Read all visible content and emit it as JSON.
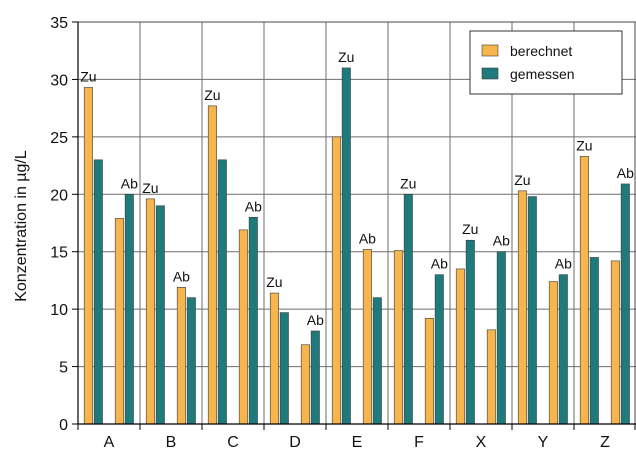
{
  "chart_data": {
    "type": "bar",
    "xlabel": "",
    "ylabel": "Konzentration in µg/L",
    "ylim": [
      0,
      35
    ],
    "yticks": [
      0,
      5,
      10,
      15,
      20,
      25,
      30,
      35
    ],
    "grid": {
      "horizontal": true,
      "vertical": true
    },
    "legend_position": "top-right",
    "categories": [
      "A",
      "B",
      "C",
      "D",
      "E",
      "F",
      "X",
      "Y",
      "Z"
    ],
    "groups": [
      {
        "category": "A",
        "bars": [
          {
            "series": "berechnet",
            "value": 29.3,
            "label": "Zu"
          },
          {
            "series": "gemessen",
            "value": 23.0,
            "label": ""
          },
          {
            "series": "berechnet",
            "value": 17.9,
            "label": ""
          },
          {
            "series": "gemessen",
            "value": 20.0,
            "label": "Ab"
          }
        ]
      },
      {
        "category": "B",
        "bars": [
          {
            "series": "berechnet",
            "value": 19.6,
            "label": "Zu"
          },
          {
            "series": "gemessen",
            "value": 19.0,
            "label": ""
          },
          {
            "series": "berechnet",
            "value": 11.9,
            "label": "Ab"
          },
          {
            "series": "gemessen",
            "value": 11.0,
            "label": ""
          }
        ]
      },
      {
        "category": "C",
        "bars": [
          {
            "series": "berechnet",
            "value": 27.7,
            "label": "Zu"
          },
          {
            "series": "gemessen",
            "value": 23.0,
            "label": ""
          },
          {
            "series": "berechnet",
            "value": 16.9,
            "label": ""
          },
          {
            "series": "gemessen",
            "value": 18.0,
            "label": "Ab"
          }
        ]
      },
      {
        "category": "D",
        "bars": [
          {
            "series": "berechnet",
            "value": 11.4,
            "label": "Zu"
          },
          {
            "series": "gemessen",
            "value": 9.7,
            "label": ""
          },
          {
            "series": "berechnet",
            "value": 6.9,
            "label": ""
          },
          {
            "series": "gemessen",
            "value": 8.1,
            "label": "Ab"
          }
        ]
      },
      {
        "category": "E",
        "bars": [
          {
            "series": "berechnet",
            "value": 25.0,
            "label": ""
          },
          {
            "series": "gemessen",
            "value": 31.0,
            "label": "Zu"
          },
          {
            "series": "berechnet",
            "value": 15.2,
            "label": "Ab"
          },
          {
            "series": "gemessen",
            "value": 11.0,
            "label": ""
          }
        ]
      },
      {
        "category": "F",
        "bars": [
          {
            "series": "berechnet",
            "value": 15.1,
            "label": ""
          },
          {
            "series": "gemessen",
            "value": 20.0,
            "label": "Zu"
          },
          {
            "series": "berechnet",
            "value": 9.2,
            "label": ""
          },
          {
            "series": "gemessen",
            "value": 13.0,
            "label": "Ab"
          }
        ]
      },
      {
        "category": "X",
        "bars": [
          {
            "series": "berechnet",
            "value": 13.5,
            "label": ""
          },
          {
            "series": "gemessen",
            "value": 16.0,
            "label": "Zu"
          },
          {
            "series": "berechnet",
            "value": 8.2,
            "label": ""
          },
          {
            "series": "gemessen",
            "value": 15.0,
            "label": "Ab"
          }
        ]
      },
      {
        "category": "Y",
        "bars": [
          {
            "series": "berechnet",
            "value": 20.3,
            "label": "Zu"
          },
          {
            "series": "gemessen",
            "value": 19.8,
            "label": ""
          },
          {
            "series": "berechnet",
            "value": 12.4,
            "label": ""
          },
          {
            "series": "gemessen",
            "value": 13.0,
            "label": "Ab"
          }
        ]
      },
      {
        "category": "Z",
        "bars": [
          {
            "series": "berechnet",
            "value": 23.3,
            "label": "Zu"
          },
          {
            "series": "gemessen",
            "value": 14.5,
            "label": ""
          },
          {
            "series": "berechnet",
            "value": 14.2,
            "label": ""
          },
          {
            "series": "gemessen",
            "value": 20.9,
            "label": "Ab"
          }
        ]
      }
    ],
    "series": [
      {
        "name": "berechnet",
        "color": "#F7B54D"
      },
      {
        "name": "gemessen",
        "color": "#1F7B7B"
      }
    ]
  }
}
